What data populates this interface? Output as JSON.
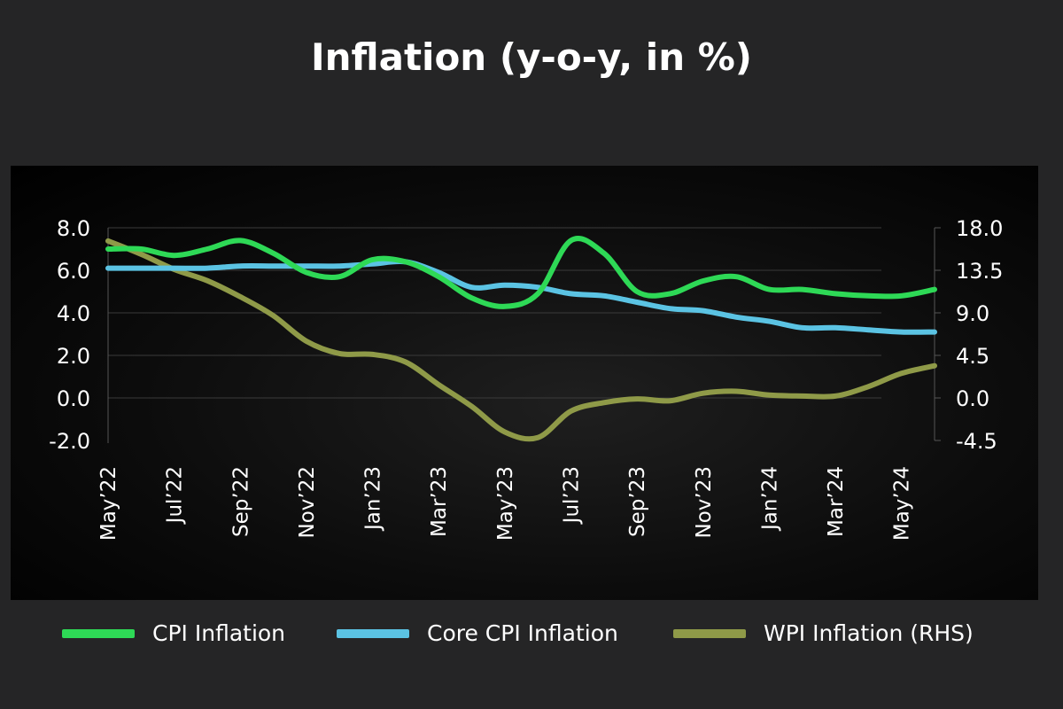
{
  "title": "Inflation (y-o-y, in %)",
  "colors": {
    "cpi": "#2ed956",
    "core": "#5bc3e3",
    "wpi": "#8f9a48"
  },
  "legend": [
    {
      "label": "CPI Inflation",
      "color": "#2ed956"
    },
    {
      "label": "Core CPI Inflation",
      "color": "#5bc3e3"
    },
    {
      "label": "WPI Inflation (RHS)",
      "color": "#8f9a48"
    }
  ],
  "chart_data": {
    "type": "line",
    "title": "Inflation (y-o-y, in %)",
    "x": [
      "May'22",
      "Jun'22",
      "Jul'22",
      "Aug'22",
      "Sep'22",
      "Oct'22",
      "Nov'22",
      "Dec'22",
      "Jan'23",
      "Feb'23",
      "Mar'23",
      "Apr'23",
      "May'23",
      "Jun'23",
      "Jul'23",
      "Aug'23",
      "Sep'23",
      "Oct'23",
      "Nov'23",
      "Dec'23",
      "Jan'24",
      "Feb'24",
      "Mar'24",
      "Apr'24",
      "May'24",
      "Jun'24"
    ],
    "x_tick_labels": [
      "May’22",
      "Jul’22",
      "Sep’22",
      "Nov’22",
      "Jan’23",
      "Mar’23",
      "May’23",
      "Jul’23",
      "Sep’23",
      "Nov’23",
      "Jan’24",
      "Mar’24",
      "May’24"
    ],
    "y_left": {
      "ticks": [
        "8.0",
        "6.0",
        "4.0",
        "2.0",
        "0.0",
        "-2.0"
      ],
      "lim": [
        -2,
        8
      ]
    },
    "y_right": {
      "ticks": [
        "18.0",
        "13.5",
        "9.0",
        "4.5",
        "0.0",
        "-4.5"
      ],
      "lim": [
        -4.5,
        18
      ]
    },
    "grid": "horizontal",
    "legend_position": "bottom",
    "series": [
      {
        "name": "CPI Inflation",
        "axis": "left",
        "values": [
          7.0,
          7.0,
          6.7,
          7.0,
          7.4,
          6.8,
          5.9,
          5.7,
          6.5,
          6.4,
          5.7,
          4.7,
          4.3,
          4.9,
          7.4,
          6.8,
          5.0,
          4.9,
          5.5,
          5.7,
          5.1,
          5.1,
          4.9,
          4.8,
          4.8,
          5.1
        ],
        "color": "#2ed956"
      },
      {
        "name": "Core CPI Inflation",
        "axis": "left",
        "values": [
          6.1,
          6.1,
          6.1,
          6.1,
          6.2,
          6.2,
          6.2,
          6.2,
          6.3,
          6.4,
          5.9,
          5.2,
          5.3,
          5.2,
          4.9,
          4.8,
          4.5,
          4.2,
          4.1,
          3.8,
          3.6,
          3.3,
          3.3,
          3.2,
          3.1,
          3.1
        ],
        "color": "#5bc3e3"
      },
      {
        "name": "WPI Inflation (RHS)",
        "axis": "right",
        "values": [
          16.6,
          15.2,
          13.6,
          12.4,
          10.7,
          8.7,
          6.0,
          4.7,
          4.6,
          3.8,
          1.4,
          -0.9,
          -3.6,
          -4.2,
          -1.4,
          -0.5,
          -0.1,
          -0.3,
          0.5,
          0.7,
          0.3,
          0.2,
          0.2,
          1.2,
          2.6,
          3.4
        ],
        "color": "#8f9a48"
      }
    ]
  }
}
